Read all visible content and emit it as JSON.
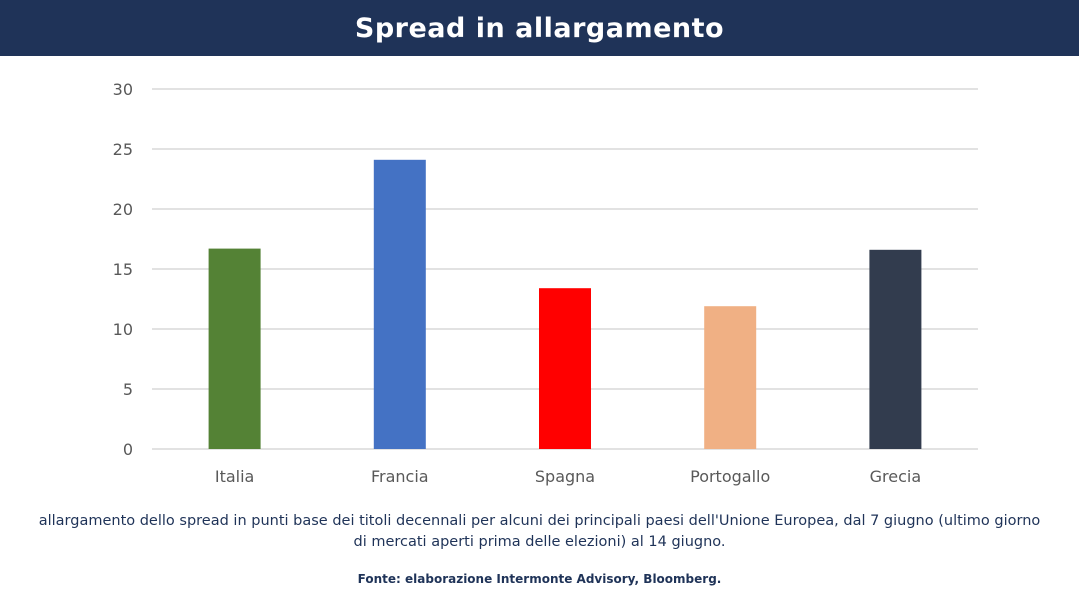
{
  "header": {
    "title": "Spread in allargamento"
  },
  "caption": "allargamento dello spread in punti base dei titoli decennali per alcuni dei principali paesi dell'Unione Europea, dal 7 giugno (ultimo giorno di mercati aperti prima delle elezioni) al 14 giugno.",
  "source": "Fonte: elaborazione Intermonte Advisory, Bloomberg.",
  "colors": {
    "header_bg": "#1f3358",
    "grid": "#d9d9d9",
    "text": "#595959"
  },
  "chart_data": {
    "type": "bar",
    "categories": [
      "Italia",
      "Francia",
      "Spagna",
      "Portogallo",
      "Grecia"
    ],
    "values": [
      16.7,
      24.1,
      13.4,
      11.9,
      16.6
    ],
    "bar_colors": [
      "#548235",
      "#4472c4",
      "#ff0000",
      "#f0b084",
      "#323c4e"
    ],
    "yticks": [
      "0",
      "5",
      "10",
      "15",
      "20",
      "25",
      "30"
    ],
    "ylim": [
      0,
      30
    ],
    "grid": true,
    "legend": "none"
  }
}
